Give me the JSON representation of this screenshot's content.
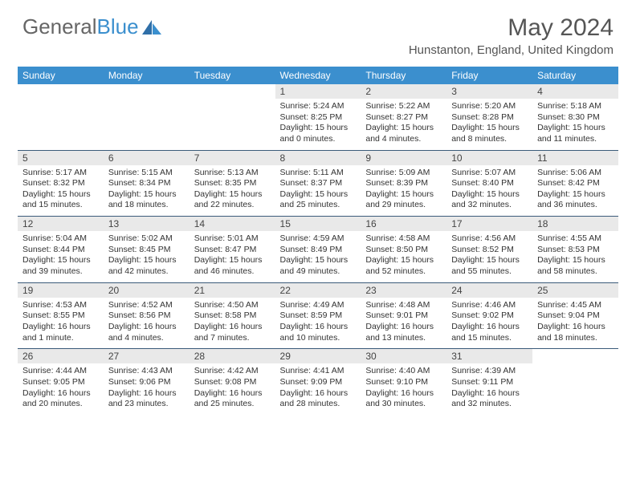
{
  "brand": {
    "part1": "General",
    "part2": "Blue"
  },
  "title": "May 2024",
  "location": "Hunstanton, England, United Kingdom",
  "colors": {
    "header_bg": "#3b8fce",
    "daynum_bg": "#e9e9e9",
    "row_border": "#3b5b7a",
    "text": "#333333",
    "title_text": "#555555"
  },
  "weekdays": [
    "Sunday",
    "Monday",
    "Tuesday",
    "Wednesday",
    "Thursday",
    "Friday",
    "Saturday"
  ],
  "weeks": [
    [
      null,
      null,
      null,
      {
        "n": "1",
        "sunrise": "5:24 AM",
        "sunset": "8:25 PM",
        "daylight": "15 hours and 0 minutes."
      },
      {
        "n": "2",
        "sunrise": "5:22 AM",
        "sunset": "8:27 PM",
        "daylight": "15 hours and 4 minutes."
      },
      {
        "n": "3",
        "sunrise": "5:20 AM",
        "sunset": "8:28 PM",
        "daylight": "15 hours and 8 minutes."
      },
      {
        "n": "4",
        "sunrise": "5:18 AM",
        "sunset": "8:30 PM",
        "daylight": "15 hours and 11 minutes."
      }
    ],
    [
      {
        "n": "5",
        "sunrise": "5:17 AM",
        "sunset": "8:32 PM",
        "daylight": "15 hours and 15 minutes."
      },
      {
        "n": "6",
        "sunrise": "5:15 AM",
        "sunset": "8:34 PM",
        "daylight": "15 hours and 18 minutes."
      },
      {
        "n": "7",
        "sunrise": "5:13 AM",
        "sunset": "8:35 PM",
        "daylight": "15 hours and 22 minutes."
      },
      {
        "n": "8",
        "sunrise": "5:11 AM",
        "sunset": "8:37 PM",
        "daylight": "15 hours and 25 minutes."
      },
      {
        "n": "9",
        "sunrise": "5:09 AM",
        "sunset": "8:39 PM",
        "daylight": "15 hours and 29 minutes."
      },
      {
        "n": "10",
        "sunrise": "5:07 AM",
        "sunset": "8:40 PM",
        "daylight": "15 hours and 32 minutes."
      },
      {
        "n": "11",
        "sunrise": "5:06 AM",
        "sunset": "8:42 PM",
        "daylight": "15 hours and 36 minutes."
      }
    ],
    [
      {
        "n": "12",
        "sunrise": "5:04 AM",
        "sunset": "8:44 PM",
        "daylight": "15 hours and 39 minutes."
      },
      {
        "n": "13",
        "sunrise": "5:02 AM",
        "sunset": "8:45 PM",
        "daylight": "15 hours and 42 minutes."
      },
      {
        "n": "14",
        "sunrise": "5:01 AM",
        "sunset": "8:47 PM",
        "daylight": "15 hours and 46 minutes."
      },
      {
        "n": "15",
        "sunrise": "4:59 AM",
        "sunset": "8:49 PM",
        "daylight": "15 hours and 49 minutes."
      },
      {
        "n": "16",
        "sunrise": "4:58 AM",
        "sunset": "8:50 PM",
        "daylight": "15 hours and 52 minutes."
      },
      {
        "n": "17",
        "sunrise": "4:56 AM",
        "sunset": "8:52 PM",
        "daylight": "15 hours and 55 minutes."
      },
      {
        "n": "18",
        "sunrise": "4:55 AM",
        "sunset": "8:53 PM",
        "daylight": "15 hours and 58 minutes."
      }
    ],
    [
      {
        "n": "19",
        "sunrise": "4:53 AM",
        "sunset": "8:55 PM",
        "daylight": "16 hours and 1 minute."
      },
      {
        "n": "20",
        "sunrise": "4:52 AM",
        "sunset": "8:56 PM",
        "daylight": "16 hours and 4 minutes."
      },
      {
        "n": "21",
        "sunrise": "4:50 AM",
        "sunset": "8:58 PM",
        "daylight": "16 hours and 7 minutes."
      },
      {
        "n": "22",
        "sunrise": "4:49 AM",
        "sunset": "8:59 PM",
        "daylight": "16 hours and 10 minutes."
      },
      {
        "n": "23",
        "sunrise": "4:48 AM",
        "sunset": "9:01 PM",
        "daylight": "16 hours and 13 minutes."
      },
      {
        "n": "24",
        "sunrise": "4:46 AM",
        "sunset": "9:02 PM",
        "daylight": "16 hours and 15 minutes."
      },
      {
        "n": "25",
        "sunrise": "4:45 AM",
        "sunset": "9:04 PM",
        "daylight": "16 hours and 18 minutes."
      }
    ],
    [
      {
        "n": "26",
        "sunrise": "4:44 AM",
        "sunset": "9:05 PM",
        "daylight": "16 hours and 20 minutes."
      },
      {
        "n": "27",
        "sunrise": "4:43 AM",
        "sunset": "9:06 PM",
        "daylight": "16 hours and 23 minutes."
      },
      {
        "n": "28",
        "sunrise": "4:42 AM",
        "sunset": "9:08 PM",
        "daylight": "16 hours and 25 minutes."
      },
      {
        "n": "29",
        "sunrise": "4:41 AM",
        "sunset": "9:09 PM",
        "daylight": "16 hours and 28 minutes."
      },
      {
        "n": "30",
        "sunrise": "4:40 AM",
        "sunset": "9:10 PM",
        "daylight": "16 hours and 30 minutes."
      },
      {
        "n": "31",
        "sunrise": "4:39 AM",
        "sunset": "9:11 PM",
        "daylight": "16 hours and 32 minutes."
      },
      null
    ]
  ],
  "labels": {
    "sunrise": "Sunrise:",
    "sunset": "Sunset:",
    "daylight": "Daylight:"
  }
}
